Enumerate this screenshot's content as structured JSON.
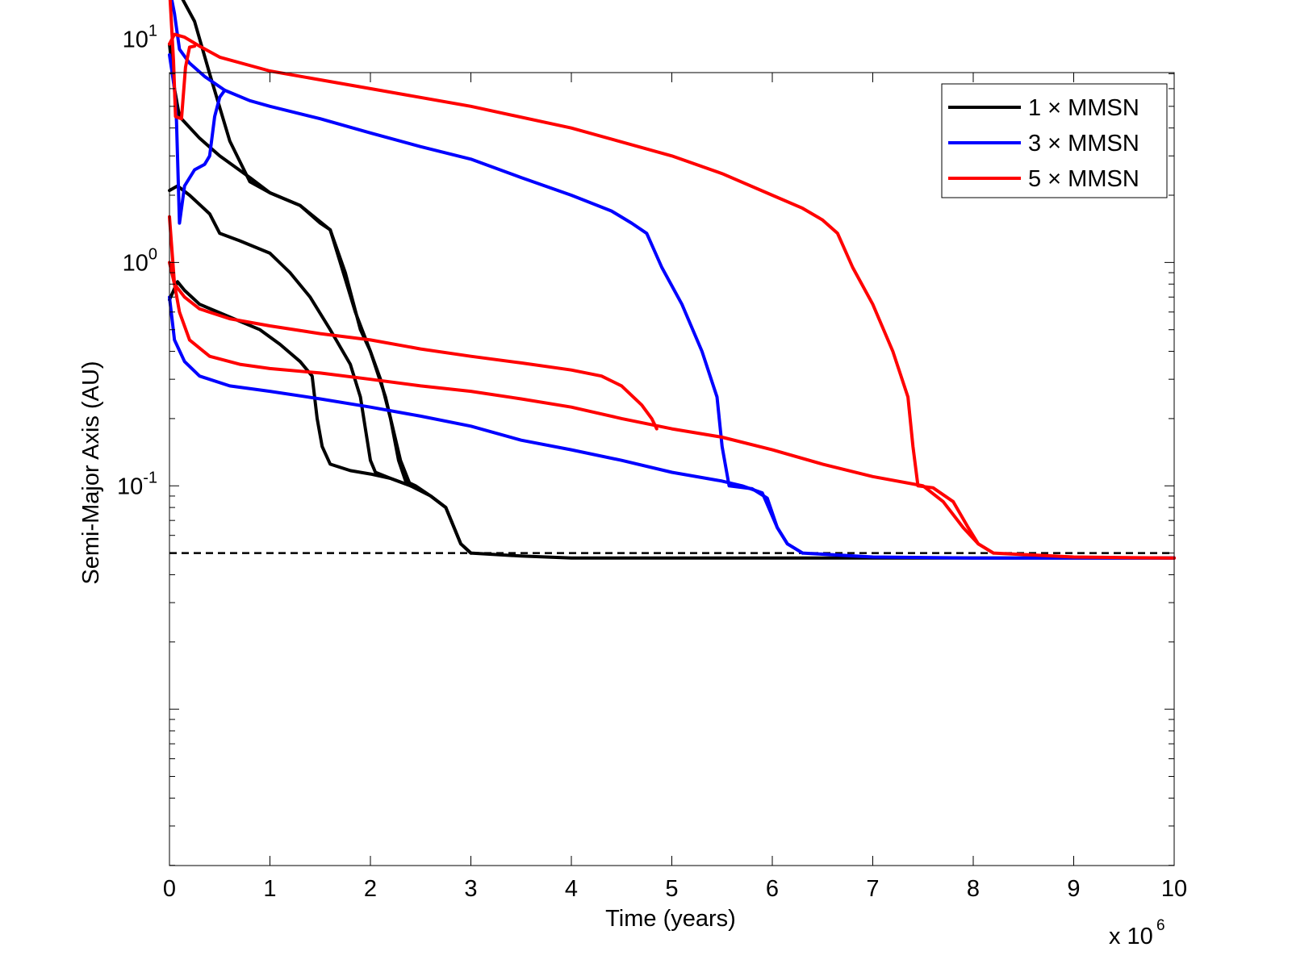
{
  "chart_data": {
    "type": "line",
    "title": "",
    "xlabel": "Time (years)",
    "ylabel": "Semi-Major Axis (AU)",
    "x_scale_note": "x 10",
    "x_scale_exponent": "6",
    "xlim": [
      0,
      10
    ],
    "ylim_log10": [
      -2.7,
      0.85
    ],
    "x_ticks": [
      "0",
      "1",
      "2",
      "3",
      "4",
      "5",
      "6",
      "7",
      "8",
      "9",
      "10"
    ],
    "y_ticks": [
      {
        "base": "10",
        "exp": "-1",
        "value": 0.1
      },
      {
        "base": "10",
        "exp": "0",
        "value": 1
      },
      {
        "base": "10",
        "exp": "1",
        "value": 10
      }
    ],
    "x_units_note": "x values in units of 10^6 years",
    "legend": [
      {
        "label": "1 × MMSN",
        "color": "#000000"
      },
      {
        "label": "3 × MMSN",
        "color": "#0000ff"
      },
      {
        "label": "5 × MMSN",
        "color": "#ff0000"
      }
    ],
    "legend_position": "top-right",
    "reference_line": {
      "y": 0.05,
      "style": "dashed",
      "color": "#000000"
    },
    "series": [
      {
        "name": "1 × MMSN",
        "color": "#000000",
        "points": [
          [
            0,
            17.5
          ],
          [
            0.1,
            16
          ],
          [
            0.25,
            12
          ],
          [
            0.4,
            7
          ],
          [
            0.6,
            3.5
          ],
          [
            0.8,
            2.3
          ],
          [
            1.0,
            2.05
          ],
          [
            1.3,
            1.8
          ],
          [
            1.6,
            1.4
          ],
          [
            1.7,
            1.0
          ],
          [
            1.85,
            0.6
          ],
          [
            2.0,
            0.4
          ],
          [
            2.15,
            0.25
          ],
          [
            2.3,
            0.13
          ],
          [
            2.4,
            0.1
          ],
          [
            2.6,
            0.09
          ],
          [
            2.75,
            0.08
          ],
          [
            2.9,
            0.055
          ],
          [
            3.0,
            0.05
          ],
          [
            3.5,
            0.0485
          ],
          [
            4.0,
            0.0475
          ],
          [
            6.0,
            0.0475
          ],
          [
            10,
            0.0475
          ]
        ]
      },
      {
        "name": "1 × MMSN",
        "color": "#000000",
        "points": [
          [
            0,
            9.5
          ],
          [
            0.05,
            6
          ],
          [
            0.1,
            4.5
          ],
          [
            0.3,
            3.6
          ],
          [
            0.5,
            3.0
          ],
          [
            0.8,
            2.4
          ],
          [
            1.0,
            2.05
          ],
          [
            1.3,
            1.8
          ],
          [
            1.5,
            1.5
          ],
          [
            1.6,
            1.4
          ],
          [
            1.75,
            0.9
          ],
          [
            1.9,
            0.5
          ],
          [
            2.0,
            0.4
          ],
          [
            2.1,
            0.3
          ],
          [
            2.2,
            0.2
          ],
          [
            2.28,
            0.13
          ],
          [
            2.35,
            0.105
          ],
          [
            2.45,
            0.1
          ],
          [
            2.6,
            0.09
          ],
          [
            2.75,
            0.08
          ],
          [
            2.9,
            0.055
          ],
          [
            3.0,
            0.05
          ]
        ]
      },
      {
        "name": "1 × MMSN",
        "color": "#000000",
        "points": [
          [
            0,
            2.1
          ],
          [
            0.08,
            2.2
          ],
          [
            0.2,
            2.0
          ],
          [
            0.4,
            1.65
          ],
          [
            0.5,
            1.35
          ],
          [
            0.7,
            1.25
          ],
          [
            1.0,
            1.1
          ],
          [
            1.2,
            0.9
          ],
          [
            1.4,
            0.7
          ],
          [
            1.6,
            0.5
          ],
          [
            1.8,
            0.35
          ],
          [
            1.9,
            0.25
          ],
          [
            1.95,
            0.18
          ],
          [
            2.0,
            0.13
          ],
          [
            2.05,
            0.115
          ],
          [
            2.2,
            0.108
          ],
          [
            2.4,
            0.1
          ]
        ]
      },
      {
        "name": "1 × MMSN",
        "color": "#000000",
        "points": [
          [
            0,
            0.68
          ],
          [
            0.08,
            0.82
          ],
          [
            0.15,
            0.75
          ],
          [
            0.3,
            0.65
          ],
          [
            0.6,
            0.57
          ],
          [
            0.9,
            0.5
          ],
          [
            1.1,
            0.43
          ],
          [
            1.3,
            0.36
          ],
          [
            1.42,
            0.31
          ],
          [
            1.47,
            0.2
          ],
          [
            1.52,
            0.15
          ],
          [
            1.6,
            0.125
          ],
          [
            1.8,
            0.117
          ],
          [
            2.0,
            0.113
          ],
          [
            2.2,
            0.108
          ],
          [
            2.4,
            0.1
          ]
        ]
      },
      {
        "name": "3 × MMSN",
        "color": "#0000ff",
        "points": [
          [
            0,
            17
          ],
          [
            0.05,
            13
          ],
          [
            0.1,
            9
          ],
          [
            0.2,
            7.8
          ],
          [
            0.35,
            6.8
          ],
          [
            0.55,
            5.9
          ],
          [
            0.8,
            5.3
          ],
          [
            1.0,
            5.0
          ],
          [
            1.5,
            4.4
          ],
          [
            2.0,
            3.8
          ],
          [
            2.5,
            3.3
          ],
          [
            3.0,
            2.9
          ],
          [
            3.5,
            2.4
          ],
          [
            4.0,
            2.0
          ],
          [
            4.4,
            1.7
          ],
          [
            4.6,
            1.5
          ],
          [
            4.75,
            1.35
          ],
          [
            4.9,
            0.95
          ],
          [
            5.1,
            0.65
          ],
          [
            5.3,
            0.4
          ],
          [
            5.45,
            0.25
          ],
          [
            5.5,
            0.15
          ],
          [
            5.57,
            0.1
          ],
          [
            5.8,
            0.097
          ],
          [
            5.95,
            0.088
          ],
          [
            6.05,
            0.065
          ],
          [
            6.15,
            0.055
          ],
          [
            6.3,
            0.05
          ],
          [
            7.0,
            0.048
          ],
          [
            8.0,
            0.0475
          ],
          [
            10,
            0.0475
          ]
        ]
      },
      {
        "name": "3 × MMSN",
        "color": "#0000ff",
        "points": [
          [
            0,
            8.5
          ],
          [
            0.05,
            6
          ],
          [
            0.07,
            4.3
          ],
          [
            0.1,
            1.5
          ],
          [
            0.15,
            2.2
          ],
          [
            0.25,
            2.6
          ],
          [
            0.35,
            2.75
          ],
          [
            0.4,
            3.0
          ],
          [
            0.45,
            4.5
          ],
          [
            0.5,
            5.5
          ],
          [
            0.55,
            5.9
          ]
        ]
      },
      {
        "name": "3 × MMSN",
        "color": "#0000ff",
        "points": [
          [
            0,
            0.7
          ],
          [
            0.05,
            0.45
          ],
          [
            0.15,
            0.36
          ],
          [
            0.3,
            0.31
          ],
          [
            0.6,
            0.28
          ],
          [
            1.0,
            0.265
          ],
          [
            1.5,
            0.245
          ],
          [
            2.0,
            0.225
          ],
          [
            2.5,
            0.205
          ],
          [
            3.0,
            0.185
          ],
          [
            3.5,
            0.16
          ],
          [
            4.0,
            0.145
          ],
          [
            4.5,
            0.13
          ],
          [
            5.0,
            0.115
          ],
          [
            5.5,
            0.105
          ],
          [
            5.7,
            0.1
          ],
          [
            5.9,
            0.093
          ],
          [
            6.05,
            0.065
          ],
          [
            6.15,
            0.055
          ],
          [
            6.3,
            0.05
          ]
        ]
      },
      {
        "name": "5 × MMSN",
        "color": "#ff0000",
        "points": [
          [
            0,
            9.5
          ],
          [
            0.05,
            10.5
          ],
          [
            0.15,
            10.2
          ],
          [
            0.3,
            9.3
          ],
          [
            0.5,
            8.3
          ],
          [
            1.0,
            7.2
          ],
          [
            2.0,
            6.0
          ],
          [
            3.0,
            5.0
          ],
          [
            4.0,
            4.0
          ],
          [
            5.0,
            3.0
          ],
          [
            5.5,
            2.5
          ],
          [
            6.0,
            2.0
          ],
          [
            6.3,
            1.75
          ],
          [
            6.5,
            1.55
          ],
          [
            6.65,
            1.35
          ],
          [
            6.8,
            0.95
          ],
          [
            7.0,
            0.65
          ],
          [
            7.2,
            0.4
          ],
          [
            7.35,
            0.25
          ],
          [
            7.4,
            0.15
          ],
          [
            7.45,
            0.1
          ],
          [
            7.6,
            0.098
          ],
          [
            7.8,
            0.085
          ],
          [
            7.95,
            0.065
          ],
          [
            8.05,
            0.055
          ],
          [
            8.2,
            0.05
          ],
          [
            9.0,
            0.048
          ],
          [
            10,
            0.0475
          ]
        ]
      },
      {
        "name": "5 × MMSN",
        "color": "#ff0000",
        "points": [
          [
            0,
            17
          ],
          [
            0.04,
            8
          ],
          [
            0.06,
            4.5
          ],
          [
            0.12,
            4.4
          ],
          [
            0.16,
            7.5
          ],
          [
            0.2,
            9.2
          ],
          [
            0.25,
            9.3
          ]
        ]
      },
      {
        "name": "5 × MMSN",
        "color": "#ff0000",
        "points": [
          [
            0,
            1.0
          ],
          [
            0.05,
            0.8
          ],
          [
            0.15,
            0.7
          ],
          [
            0.3,
            0.62
          ],
          [
            0.6,
            0.56
          ],
          [
            1.0,
            0.52
          ],
          [
            1.5,
            0.48
          ],
          [
            2.0,
            0.45
          ],
          [
            2.5,
            0.41
          ],
          [
            3.0,
            0.38
          ],
          [
            3.5,
            0.355
          ],
          [
            4.0,
            0.33
          ],
          [
            4.3,
            0.31
          ],
          [
            4.5,
            0.28
          ],
          [
            4.7,
            0.23
          ],
          [
            4.8,
            0.2
          ],
          [
            4.85,
            0.18
          ]
        ]
      },
      {
        "name": "5 × MMSN",
        "color": "#ff0000",
        "points": [
          [
            0,
            1.6
          ],
          [
            0.05,
            0.8
          ],
          [
            0.1,
            0.6
          ],
          [
            0.2,
            0.45
          ],
          [
            0.4,
            0.38
          ],
          [
            0.7,
            0.35
          ],
          [
            1.0,
            0.335
          ],
          [
            1.5,
            0.32
          ],
          [
            2.0,
            0.3
          ],
          [
            2.5,
            0.28
          ],
          [
            3.0,
            0.265
          ],
          [
            3.5,
            0.245
          ],
          [
            4.0,
            0.225
          ],
          [
            4.5,
            0.2
          ],
          [
            5.0,
            0.18
          ],
          [
            5.5,
            0.165
          ],
          [
            6.0,
            0.145
          ],
          [
            6.5,
            0.125
          ],
          [
            7.0,
            0.11
          ],
          [
            7.5,
            0.1
          ],
          [
            7.7,
            0.085
          ],
          [
            7.9,
            0.065
          ],
          [
            8.05,
            0.055
          ],
          [
            8.2,
            0.05
          ]
        ]
      }
    ]
  }
}
